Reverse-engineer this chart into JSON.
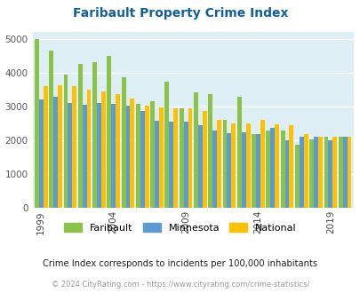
{
  "title": "Faribault Property Crime Index",
  "subtitle": "Crime Index corresponds to incidents per 100,000 inhabitants",
  "footer": "© 2024 CityRating.com - https://www.cityrating.com/crime-statistics/",
  "years": [
    1999,
    2000,
    2001,
    2002,
    2003,
    2004,
    2005,
    2006,
    2007,
    2008,
    2009,
    2010,
    2011,
    2012,
    2013,
    2014,
    2015,
    2016,
    2017,
    2018,
    2019,
    2020
  ],
  "faribault": [
    5000,
    4650,
    3960,
    4270,
    4320,
    4500,
    3880,
    3070,
    3160,
    3750,
    2950,
    3420,
    3370,
    2620,
    3290,
    2180,
    2300,
    2300,
    1860,
    2040,
    2110,
    2110
  ],
  "minnesota": [
    3200,
    3290,
    3100,
    3050,
    3100,
    3070,
    3040,
    2860,
    2580,
    2560,
    2560,
    2440,
    2300,
    2220,
    2230,
    2200,
    2380,
    2010,
    2110,
    2110,
    2000,
    2110
  ],
  "national": [
    3600,
    3640,
    3600,
    3500,
    3460,
    3380,
    3240,
    3040,
    2970,
    2940,
    2950,
    2880,
    2600,
    2500,
    2500,
    2620,
    2470,
    2450,
    2200,
    2100,
    2100,
    2100
  ],
  "bar_colors": {
    "faribault": "#8bc34a",
    "minnesota": "#5b9bd5",
    "national": "#ffc000"
  },
  "bg_color": "#deeef5",
  "title_color": "#1060a0",
  "ylim": [
    0,
    5200
  ],
  "yticks": [
    0,
    1000,
    2000,
    3000,
    4000,
    5000
  ],
  "tick_label_years": [
    1999,
    2004,
    2009,
    2014,
    2019
  ]
}
